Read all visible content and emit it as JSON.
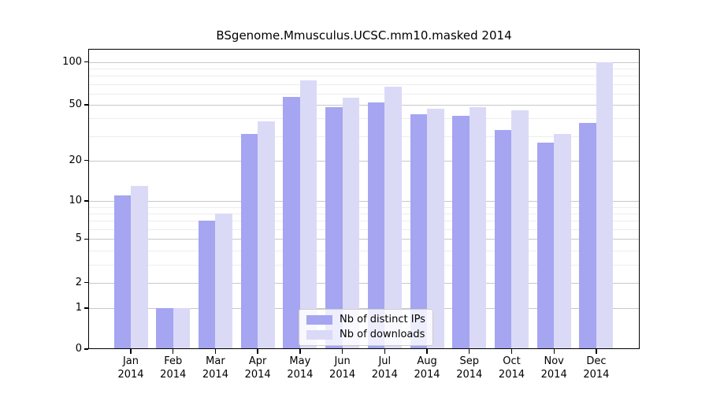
{
  "title": "BSgenome.Mmusculus.UCSC.mm10.masked 2014",
  "chart_data": {
    "type": "bar",
    "title": "BSgenome.Mmusculus.UCSC.mm10.masked 2014",
    "categories": [
      "Jan",
      "Feb",
      "Mar",
      "Apr",
      "May",
      "Jun",
      "Jul",
      "Aug",
      "Sep",
      "Oct",
      "Nov",
      "Dec"
    ],
    "x_tick_second_line": "2014",
    "series": [
      {
        "name": "Nb of distinct IPs",
        "color": "#a5a5f2",
        "values": [
          11,
          1,
          7,
          31,
          57,
          48,
          52,
          43,
          42,
          33,
          27,
          37
        ]
      },
      {
        "name": "Nb of downloads",
        "color": "#dadaf7",
        "values": [
          13,
          1,
          8,
          38,
          74,
          56,
          67,
          47,
          48,
          46,
          31,
          100
        ]
      }
    ],
    "xlabel": "",
    "ylabel": "",
    "y_scale": "log1p",
    "y_major_ticks": [
      0,
      1,
      2,
      5,
      10,
      20,
      50,
      100
    ],
    "y_minor_gridlines": [
      3,
      4,
      6,
      7,
      8,
      9,
      30,
      40,
      60,
      70,
      80,
      90
    ],
    "ylim": [
      0,
      123
    ],
    "grid": "horizontal",
    "legend_position": "inside-bottom-center"
  },
  "colors": {
    "background": "#ffffff",
    "spine": "#000000",
    "major_grid": "#c8c8c8",
    "minor_grid": "#ededed",
    "distinct_ips": "#a5a5f2",
    "downloads": "#dadaf7"
  }
}
